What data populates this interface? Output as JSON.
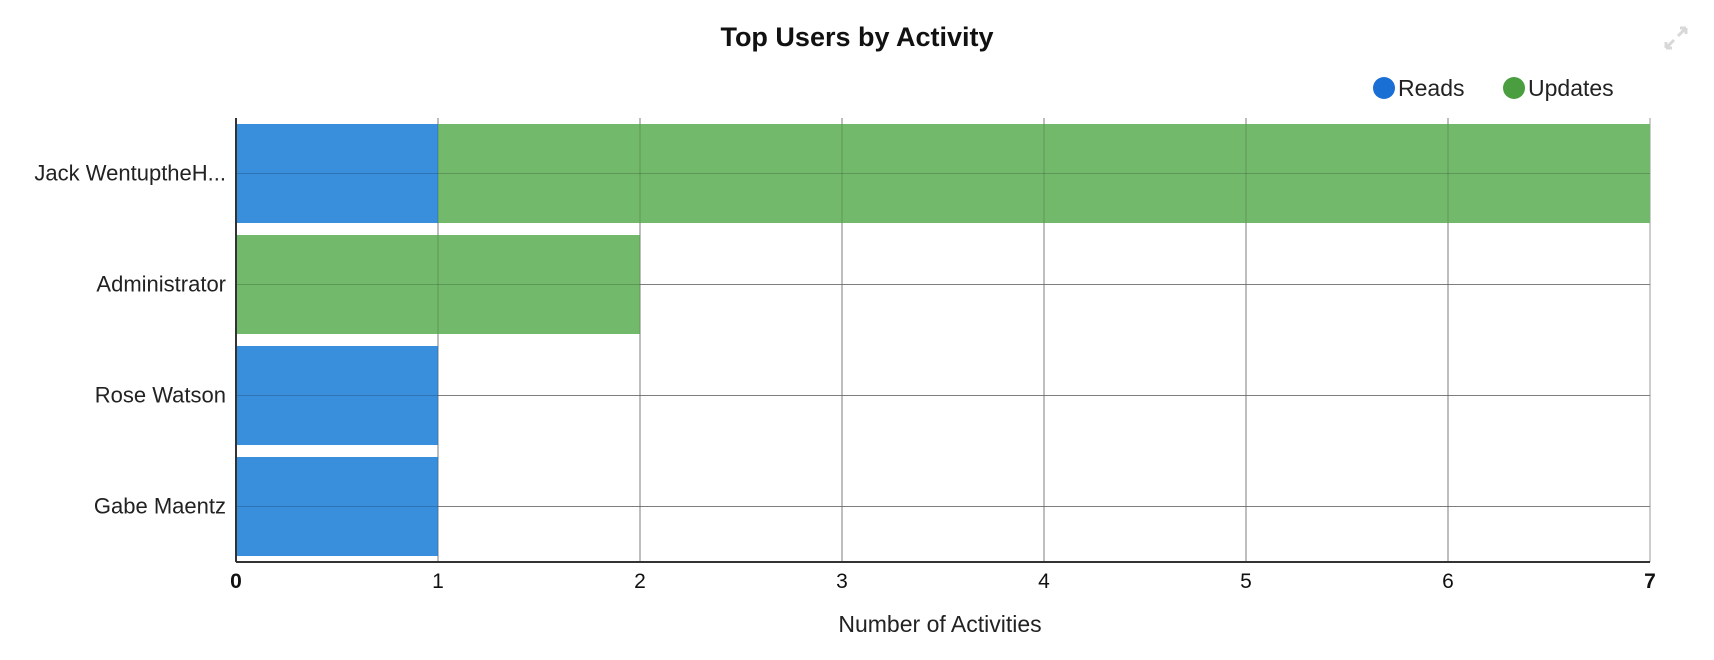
{
  "chart_data": {
    "type": "bar",
    "orientation": "horizontal",
    "stacked": true,
    "title": "Top Users by Activity",
    "xlabel": "Number of Activities",
    "ylabel": "",
    "xlim": [
      0,
      7
    ],
    "x_ticks": [
      "0",
      "1",
      "2",
      "3",
      "4",
      "5",
      "6",
      "7"
    ],
    "grid": true,
    "legend_position": "top-right",
    "categories": [
      "Jack WentuptheH...",
      "Administrator",
      "Rose Watson",
      "Gabe Maentz"
    ],
    "series": [
      {
        "name": "Reads",
        "color": "#3a8fdd",
        "marker_color": "#1a6fd4",
        "values": [
          1,
          0,
          1,
          1
        ]
      },
      {
        "name": "Updates",
        "color": "#72b96b",
        "marker_color": "#4a9e3f",
        "values": [
          6,
          2,
          0,
          0
        ]
      }
    ]
  },
  "icons": {
    "expand": "expand-icon"
  }
}
